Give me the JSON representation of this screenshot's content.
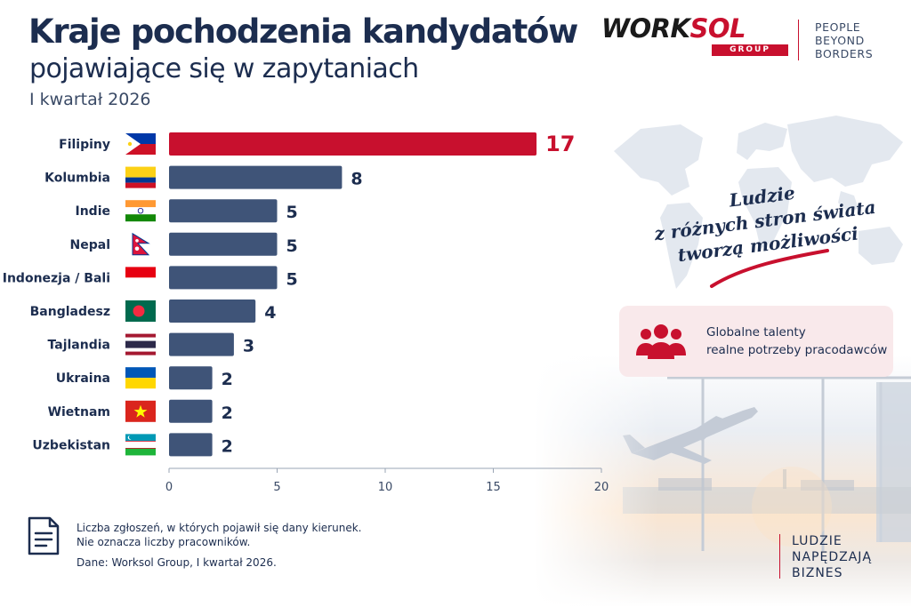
{
  "header": {
    "title": "Kraje pochodzenia kandydatów",
    "subtitle": "pojawiające się w zapytaniach",
    "period": "I kwartał 2026"
  },
  "logo": {
    "word_a": "WORK",
    "word_b": "SOL",
    "group": "GROUP",
    "tagline": [
      "PEOPLE",
      "BEYOND",
      "BORDERS"
    ]
  },
  "colors": {
    "navy": "#1c2d4f",
    "bar": "#3f5478",
    "highlight": "#c8102e"
  },
  "chart_data": {
    "type": "bar",
    "orientation": "horizontal",
    "categories": [
      "Filipiny",
      "Kolumbia",
      "Indie",
      "Nepal",
      "Indonezja / Bali",
      "Bangladesz",
      "Tajlandia",
      "Ukraina",
      "Wietnam",
      "Uzbekistan"
    ],
    "values": [
      17,
      8,
      5,
      5,
      5,
      4,
      3,
      2,
      2,
      2
    ],
    "flags": [
      "philippines-flag",
      "colombia-flag",
      "india-flag",
      "nepal-flag",
      "indonesia-flag",
      "bangladesh-flag",
      "thailand-flag",
      "ukraine-flag",
      "vietnam-flag",
      "uzbekistan-flag"
    ],
    "highlight_index": 0,
    "xlim": [
      0,
      20
    ],
    "xticks": [
      0,
      5,
      10,
      15,
      20
    ],
    "grid": false
  },
  "callout": {
    "lines": [
      "Ludzie",
      "z różnych stron świata",
      "tworzą możliwości"
    ]
  },
  "info_box": {
    "icon": "people-group-icon",
    "lines": [
      "Globalne talenty",
      "realne potrzeby pracodawców"
    ]
  },
  "footer": {
    "icon": "document-icon",
    "note_lines": [
      "Liczba zgłoszeń, w których pojawił się dany kierunek.",
      "Nie oznacza liczby pracowników."
    ],
    "source": "Dane: Worksol Group, I kwartał 2026.",
    "slogan": [
      "LUDZIE",
      "NAPĘDZAJĄ",
      "BIZNES"
    ]
  }
}
